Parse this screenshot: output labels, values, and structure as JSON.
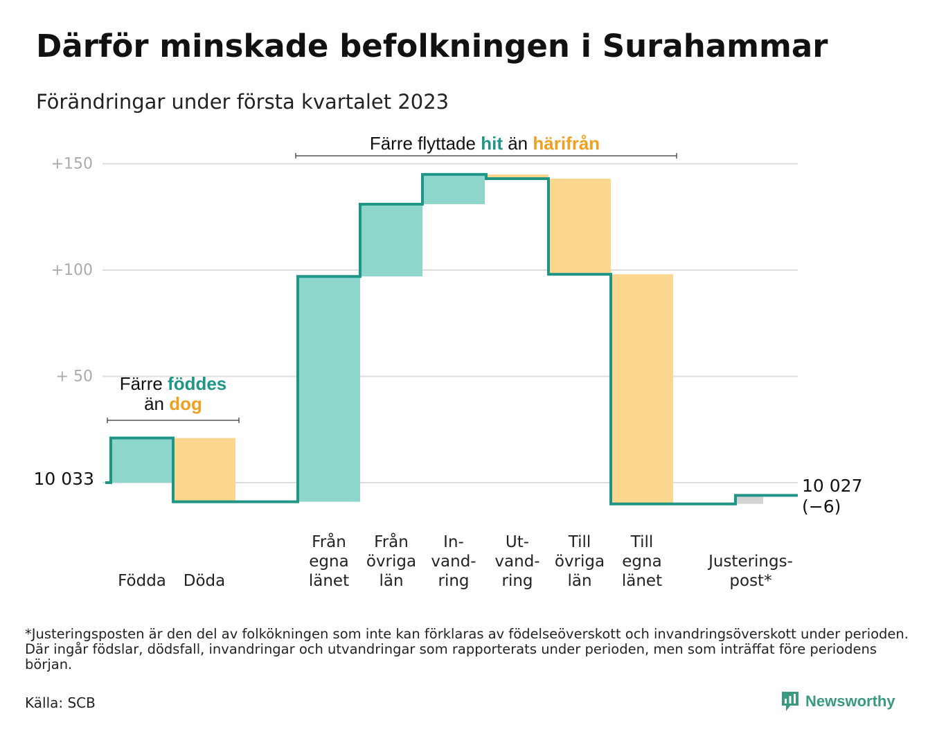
{
  "title": "Därför minskade befolkningen i Surahammar",
  "subtitle": "Förändringar under första kvartalet 2023",
  "colors": {
    "increase": "#8ed5cc",
    "decrease": "#fad68e",
    "adjustment": "#d3d3d3",
    "line": "#1f9585",
    "teal_text": "#1f9585",
    "orange_text": "#f0a020",
    "grid": "#dddddd",
    "tick_text": "#aaaaaa"
  },
  "chart_data": {
    "type": "waterfall",
    "start_value": 10033,
    "start_label": "10 033",
    "end_label": "10 027",
    "end_change_label": "(−6)",
    "y_ticks": [
      {
        "value": 50,
        "label": "+ 50"
      },
      {
        "value": 100,
        "label": "+100"
      },
      {
        "value": 150,
        "label": "+150"
      }
    ],
    "ylim": [
      -12,
      155
    ],
    "grid": true,
    "steps": [
      {
        "label_lines": [
          "Födda"
        ],
        "change": 21,
        "kind": "increase"
      },
      {
        "label_lines": [
          "Döda"
        ],
        "change": -30,
        "kind": "decrease"
      },
      {
        "label_lines": [
          "Från",
          "egna",
          "länet"
        ],
        "change": 106,
        "kind": "increase"
      },
      {
        "label_lines": [
          "Från",
          "övriga",
          "län"
        ],
        "change": 34,
        "kind": "increase"
      },
      {
        "label_lines": [
          "In-",
          "vand-",
          "ring"
        ],
        "change": 14,
        "kind": "increase"
      },
      {
        "label_lines": [
          "Ut-",
          "vand-",
          "ring"
        ],
        "change": -2,
        "kind": "decrease"
      },
      {
        "label_lines": [
          "Till",
          "övriga",
          "län"
        ],
        "change": -45,
        "kind": "decrease"
      },
      {
        "label_lines": [
          "Till",
          "egna",
          "länet"
        ],
        "change": -108,
        "kind": "decrease"
      },
      {
        "label_lines": [
          "Justerings-",
          "post*"
        ],
        "change": 4,
        "kind": "adjustment"
      }
    ],
    "annotations": [
      {
        "id": "births",
        "lines": [
          [
            {
              "text": "Färre ",
              "style": "plain"
            },
            {
              "text": "föddes",
              "style": "teal"
            }
          ],
          [
            {
              "text": "än ",
              "style": "plain"
            },
            {
              "text": "dog",
              "style": "orange"
            }
          ]
        ]
      },
      {
        "id": "migration",
        "lines": [
          [
            {
              "text": "Färre flyttade ",
              "style": "plain"
            },
            {
              "text": "hit",
              "style": "teal"
            },
            {
              "text": " än ",
              "style": "plain"
            },
            {
              "text": "härifrån",
              "style": "orange"
            }
          ]
        ]
      }
    ]
  },
  "footnote": "*Justeringsposten är den del av folkökningen som inte kan förklaras av födelseöverskott och invandringsöverskott under perioden. Där ingår födslar, dödsfall, invandringar och utvandringar som rapporterats under perioden, men som inträffat före periodens början.",
  "source": "Källa: SCB",
  "brand": {
    "name": "Newsworthy",
    "icon": "newsworthy-logo-icon"
  }
}
